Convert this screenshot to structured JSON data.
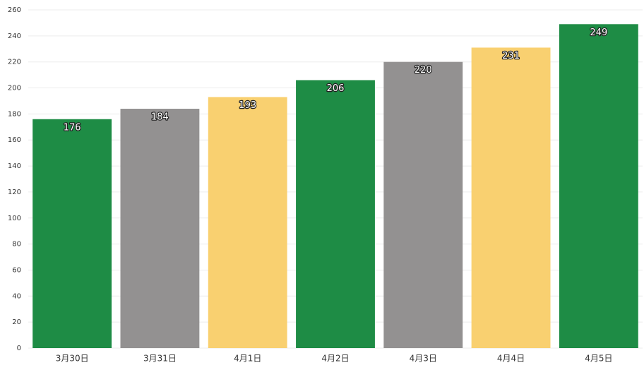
{
  "chart_data": {
    "type": "bar",
    "categories": [
      "3月30日",
      "3月31日",
      "4月1日",
      "4月2日",
      "4月3日",
      "4月4日",
      "4月5日"
    ],
    "values": [
      176,
      184,
      193,
      206,
      220,
      231,
      249
    ],
    "colors": [
      "#1e8c45",
      "#939191",
      "#f9d070",
      "#1e8c45",
      "#939191",
      "#f9d070",
      "#1e8c45"
    ],
    "ylim": [
      0,
      260
    ],
    "yticks": [
      0,
      20,
      40,
      60,
      80,
      100,
      120,
      140,
      160,
      180,
      200,
      220,
      240,
      260
    ],
    "grid": true
  }
}
